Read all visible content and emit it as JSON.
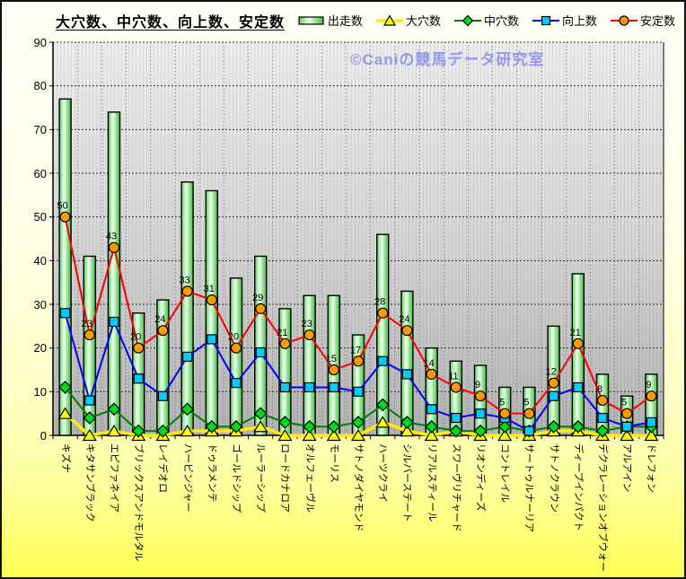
{
  "watermark": "©Caniの競馬データ研究室",
  "chart_data": {
    "type": "bar+line combo",
    "title": "大穴数、中穴数、向上数、安定数",
    "xlabel": "",
    "ylabel": "",
    "ylim": [
      0,
      90
    ],
    "y_ticks": [
      0,
      10,
      20,
      30,
      40,
      50,
      60,
      70,
      80,
      90
    ],
    "grid": true,
    "legend_position": "top-right",
    "plot_bg": "#d9d9d9",
    "categories": [
      "キズナ",
      "キタサンブラック",
      "エピファネイア",
      "ブリックスアンドモルタル",
      "レイデオロ",
      "ハービンジャー",
      "ドゥラメンテ",
      "ゴールドシップ",
      "ルーラーシップ",
      "ロードカナロア",
      "オルフェーヴル",
      "モーリス",
      "サトノダイヤモンド",
      "ハーツクライ",
      "シルバーステート",
      "リアルスティール",
      "スワーヴリチャード",
      "リオンディーズ",
      "コントレイル",
      "サートゥルナーリア",
      "サトノクラウン",
      "ディープインパクト",
      "デクラレーションオブウォー",
      "アルアイン",
      "ドレフォン"
    ],
    "series": [
      {
        "name": "出走数",
        "type": "bar",
        "color": "#55c855",
        "border_color": "#000000",
        "values": [
          77,
          41,
          74,
          28,
          31,
          58,
          56,
          36,
          41,
          29,
          32,
          32,
          23,
          46,
          33,
          20,
          17,
          16,
          11,
          11,
          25,
          37,
          14,
          9,
          14
        ]
      },
      {
        "name": "大穴数",
        "type": "line",
        "marker": "triangle",
        "line_color": "#ffee00",
        "marker_color": "#ffff00",
        "values": [
          5,
          0,
          1,
          0,
          0,
          1,
          1,
          1,
          2,
          0,
          0,
          0,
          0,
          3,
          1,
          0,
          1,
          0,
          0,
          0,
          1,
          1,
          0,
          0,
          0
        ]
      },
      {
        "name": "中穴数",
        "type": "line",
        "marker": "diamond",
        "line_color": "#008000",
        "marker_color": "#00d820",
        "values": [
          11,
          4,
          6,
          1,
          1,
          6,
          2,
          2,
          5,
          3,
          2,
          2,
          3,
          7,
          3,
          2,
          1,
          1,
          2,
          1,
          2,
          2,
          1,
          2,
          2
        ]
      },
      {
        "name": "向上数",
        "type": "line",
        "marker": "square",
        "line_color": "#0000ff",
        "marker_color": "#00ccff",
        "values": [
          28,
          8,
          26,
          13,
          9,
          18,
          22,
          12,
          19,
          11,
          11,
          11,
          10,
          17,
          14,
          6,
          4,
          5,
          4,
          1,
          9,
          11,
          4,
          2,
          3
        ]
      },
      {
        "name": "安定数",
        "type": "line",
        "marker": "circle",
        "line_color": "#ff0000",
        "marker_color": "#ff9900",
        "data_labels": true,
        "values": [
          50,
          23,
          43,
          20,
          24,
          33,
          31,
          20,
          29,
          21,
          23,
          15,
          17,
          28,
          24,
          14,
          11,
          9,
          5,
          5,
          12,
          21,
          8,
          5,
          9
        ]
      }
    ]
  }
}
